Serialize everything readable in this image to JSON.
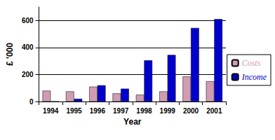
{
  "chart_data": {
    "type": "bar",
    "x_label": "Year",
    "y_label": "£ '000",
    "categories": [
      "1994",
      "1995",
      "1996",
      "1997",
      "1998",
      "1999",
      "2000",
      "2001"
    ],
    "series": [
      {
        "name": "Costs",
        "color": "#d09cb4",
        "values": [
          80,
          75,
          110,
          60,
          50,
          75,
          185,
          150
        ]
      },
      {
        "name": "Income",
        "color": "#0000cc",
        "values": [
          0,
          20,
          120,
          95,
          305,
          345,
          545,
          610
        ]
      }
    ],
    "ylim": [
      0,
      700
    ],
    "yticks": [
      0,
      200,
      400,
      600
    ],
    "grid": true,
    "legend": "right"
  }
}
